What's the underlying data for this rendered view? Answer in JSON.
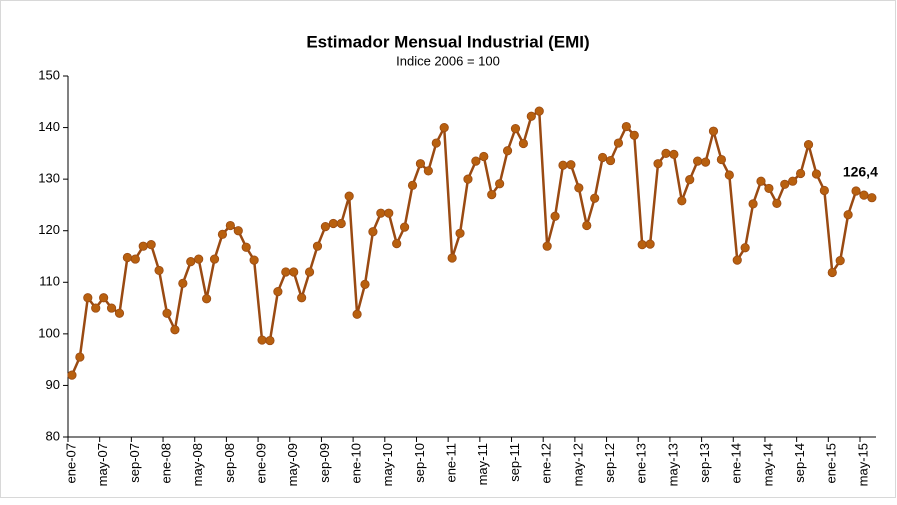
{
  "chart_data": {
    "type": "line",
    "title": "Estimador Mensual Industrial (EMI)",
    "subtitle": "Indice 2006 = 100",
    "categories": [
      "ene-07",
      null,
      null,
      null,
      "may-07",
      null,
      null,
      null,
      "sep-07",
      null,
      null,
      null,
      "ene-08",
      null,
      null,
      null,
      "may-08",
      null,
      null,
      null,
      "sep-08",
      null,
      null,
      null,
      "ene-09",
      null,
      null,
      null,
      "may-09",
      null,
      null,
      null,
      "sep-09",
      null,
      null,
      null,
      "ene-10",
      null,
      null,
      null,
      "may-10",
      null,
      null,
      null,
      "sep-10",
      null,
      null,
      null,
      "ene-11",
      null,
      null,
      null,
      "may-11",
      null,
      null,
      null,
      "sep-11",
      null,
      null,
      null,
      "ene-12",
      null,
      null,
      null,
      "may-12",
      null,
      null,
      null,
      "sep-12",
      null,
      null,
      null,
      "ene-13",
      null,
      null,
      null,
      "may-13",
      null,
      null,
      null,
      "sep-13",
      null,
      null,
      null,
      "ene-14",
      null,
      null,
      null,
      "may-14",
      null,
      null,
      null,
      "sep-14",
      null,
      null,
      null,
      "ene-15",
      null,
      null,
      null,
      "may-15",
      null
    ],
    "values": [
      92,
      95.5,
      107,
      105,
      107,
      105,
      104,
      114.8,
      114.5,
      117,
      117.3,
      112.3,
      104,
      100.8,
      109.8,
      114,
      114.5,
      106.8,
      114.5,
      119.3,
      121,
      120,
      116.8,
      114.3,
      98.8,
      98.7,
      108.2,
      112,
      112,
      107,
      112,
      117,
      120.8,
      121.4,
      121.4,
      126.7,
      103.8,
      109.6,
      119.8,
      123.4,
      123.4,
      117.5,
      120.7,
      128.8,
      133,
      131.6,
      137,
      140,
      114.7,
      119.5,
      130,
      133.5,
      134.4,
      127,
      129.1,
      135.5,
      139.8,
      136.9,
      142.2,
      143.2,
      117,
      122.8,
      132.7,
      132.8,
      128.3,
      121,
      126.3,
      134.2,
      133.6,
      137,
      140.2,
      138.5,
      117.3,
      117.4,
      133,
      135,
      134.8,
      125.8,
      129.9,
      133.5,
      133.3,
      139.3,
      133.8,
      130.8,
      114.3,
      116.7,
      125.2,
      129.6,
      128.2,
      125.3,
      129,
      129.6,
      131.1,
      136.7,
      131,
      127.8,
      111.9,
      114.2,
      123.1,
      127.7,
      126.9,
      126.4
    ],
    "value_labels": [
      null,
      null,
      null,
      null,
      null,
      null,
      null,
      null,
      null,
      null,
      null,
      null,
      null,
      null,
      null,
      null,
      null,
      null,
      null,
      null,
      null,
      null,
      null,
      null,
      null,
      null,
      null,
      null,
      null,
      null,
      null,
      null,
      null,
      null,
      null,
      null,
      null,
      null,
      null,
      null,
      null,
      null,
      null,
      null,
      null,
      null,
      null,
      null,
      null,
      null,
      null,
      null,
      null,
      null,
      null,
      null,
      null,
      null,
      null,
      null,
      null,
      null,
      null,
      null,
      null,
      null,
      null,
      null,
      null,
      null,
      null,
      null,
      null,
      null,
      null,
      null,
      null,
      null,
      null,
      null,
      null,
      null,
      null,
      null,
      null,
      null,
      null,
      null,
      null,
      null,
      null,
      null,
      null,
      null,
      null,
      null,
      null,
      null,
      null,
      null,
      null,
      "126,4"
    ],
    "color": "#9a4a12",
    "marker_color": "#b8600f",
    "ylim": [
      80,
      150
    ],
    "yticks": [
      80,
      90,
      100,
      110,
      120,
      130,
      140,
      150
    ]
  }
}
